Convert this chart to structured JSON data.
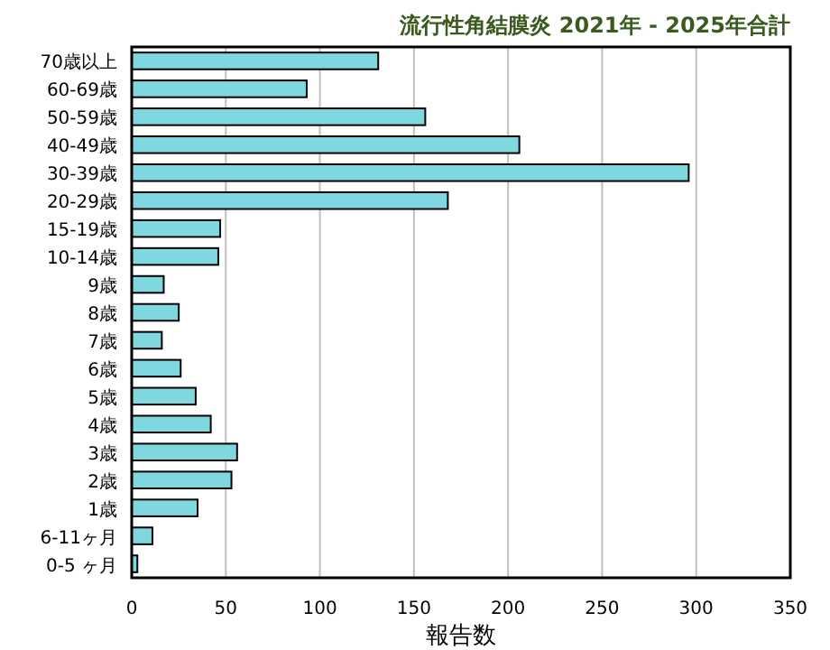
{
  "chart_data": {
    "type": "bar",
    "orientation": "horizontal",
    "title": "流行性角結膜炎 2021年 - 2025年合計",
    "xlabel": "報告数",
    "categories": [
      "70歳以上",
      "60-69歳",
      "50-59歳",
      "40-49歳",
      "30-39歳",
      "20-29歳",
      "15-19歳",
      "10-14歳",
      "9歳",
      "8歳",
      "7歳",
      "6歳",
      "5歳",
      "4歳",
      "3歳",
      "2歳",
      "1歳",
      "6-11ヶ月",
      "0-5 ヶ月"
    ],
    "values": [
      131,
      93,
      156,
      206,
      296,
      168,
      47,
      46,
      17,
      25,
      16,
      26,
      34,
      42,
      56,
      53,
      35,
      11,
      3
    ],
    "color": "#7fd8e0",
    "xlim": [
      0,
      350
    ],
    "xticks": [
      0,
      50,
      100,
      150,
      200,
      250,
      300,
      350
    ],
    "grid": "x"
  }
}
